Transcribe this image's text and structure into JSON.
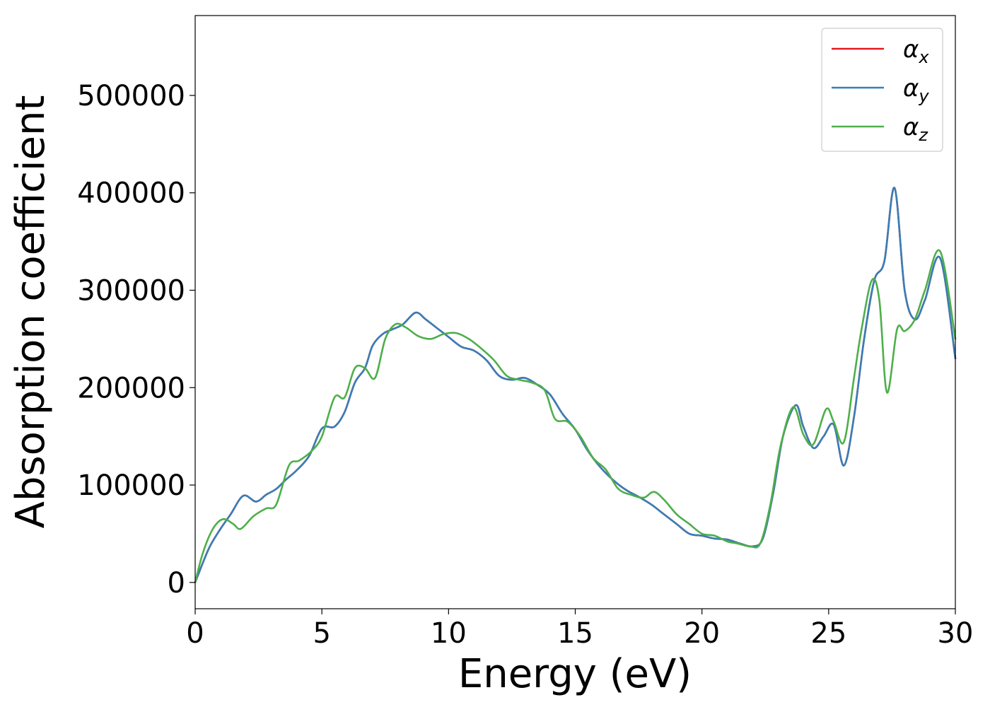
{
  "chart_data": {
    "type": "line",
    "title": "",
    "xlabel": "Energy (eV)",
    "ylabel": "Absorption coefficient",
    "xlim": [
      0,
      30
    ],
    "ylim": [
      -27000,
      582000
    ],
    "xticks": [
      0,
      5,
      10,
      15,
      20,
      25,
      30
    ],
    "yticks": [
      0,
      100000,
      200000,
      300000,
      400000,
      500000
    ],
    "grid": false,
    "legend_position": "top-right",
    "series": [
      {
        "name": "α",
        "subscript": "x",
        "color": "#e41a1c",
        "x": [
          0,
          0.3,
          0.6,
          1.0,
          1.4,
          1.9,
          2.4,
          2.8,
          3.2,
          3.6,
          4.0,
          4.5,
          5.0,
          5.5,
          5.9,
          6.3,
          6.7,
          7.0,
          7.4,
          7.8,
          8.2,
          8.7,
          9.1,
          9.5,
          10.0,
          10.5,
          11.0,
          11.5,
          12.0,
          12.5,
          13.0,
          13.5,
          14.0,
          14.5,
          15.0,
          15.5,
          16.0,
          16.5,
          17.0,
          17.5,
          18.0,
          18.5,
          19.0,
          19.5,
          20.0,
          20.5,
          21.0,
          21.5,
          22.0,
          22.4,
          22.8,
          23.2,
          23.7,
          24.0,
          24.4,
          24.8,
          25.2,
          25.6,
          26.0,
          26.4,
          26.8,
          27.2,
          27.6,
          28.0,
          28.4,
          28.8,
          29.4,
          30.0
        ],
        "y": [
          0,
          20000,
          38000,
          55000,
          70000,
          89000,
          83000,
          90000,
          96000,
          106000,
          115000,
          130000,
          158000,
          160000,
          175000,
          205000,
          220000,
          243000,
          255000,
          260000,
          265000,
          277000,
          270000,
          262000,
          252000,
          242000,
          238000,
          228000,
          212000,
          208000,
          210000,
          203000,
          193000,
          173000,
          157000,
          135000,
          118000,
          105000,
          95000,
          88000,
          80000,
          70000,
          60000,
          50000,
          48000,
          45000,
          44000,
          40000,
          37000,
          45000,
          90000,
          150000,
          182000,
          160000,
          138000,
          150000,
          162000,
          120000,
          170000,
          250000,
          310000,
          330000,
          405000,
          300000,
          270000,
          290000,
          333000,
          230000
        ]
      },
      {
        "name": "α",
        "subscript": "y",
        "color": "#377eb8",
        "x": [
          0,
          0.3,
          0.6,
          1.0,
          1.4,
          1.9,
          2.4,
          2.8,
          3.2,
          3.6,
          4.0,
          4.5,
          5.0,
          5.5,
          5.9,
          6.3,
          6.7,
          7.0,
          7.4,
          7.8,
          8.2,
          8.7,
          9.1,
          9.5,
          10.0,
          10.5,
          11.0,
          11.5,
          12.0,
          12.5,
          13.0,
          13.5,
          14.0,
          14.5,
          15.0,
          15.5,
          16.0,
          16.5,
          17.0,
          17.5,
          18.0,
          18.5,
          19.0,
          19.5,
          20.0,
          20.5,
          21.0,
          21.5,
          22.0,
          22.4,
          22.8,
          23.2,
          23.7,
          24.0,
          24.4,
          24.8,
          25.2,
          25.6,
          26.0,
          26.4,
          26.8,
          27.2,
          27.6,
          28.0,
          28.4,
          28.8,
          29.4,
          30.0
        ],
        "y": [
          0,
          20000,
          38000,
          55000,
          70000,
          89000,
          83000,
          90000,
          96000,
          106000,
          115000,
          130000,
          158000,
          160000,
          175000,
          205000,
          220000,
          243000,
          255000,
          260000,
          265000,
          277000,
          270000,
          262000,
          252000,
          242000,
          238000,
          228000,
          212000,
          208000,
          210000,
          203000,
          193000,
          173000,
          157000,
          135000,
          118000,
          105000,
          95000,
          88000,
          80000,
          70000,
          60000,
          50000,
          48000,
          45000,
          44000,
          40000,
          37000,
          45000,
          90000,
          150000,
          182000,
          160000,
          138000,
          150000,
          162000,
          120000,
          170000,
          250000,
          310000,
          330000,
          405000,
          300000,
          270000,
          290000,
          333000,
          230000
        ]
      },
      {
        "name": "α",
        "subscript": "z",
        "color": "#4daf4a",
        "x": [
          0,
          0.3,
          0.7,
          1.1,
          1.5,
          1.8,
          2.3,
          2.8,
          3.2,
          3.7,
          4.1,
          4.6,
          5.0,
          5.5,
          5.9,
          6.3,
          6.7,
          7.1,
          7.5,
          7.9,
          8.3,
          8.8,
          9.3,
          9.8,
          10.3,
          10.8,
          11.3,
          11.8,
          12.3,
          12.8,
          13.3,
          13.8,
          14.2,
          14.7,
          15.2,
          15.7,
          16.2,
          16.7,
          17.2,
          17.7,
          18.1,
          18.5,
          19.0,
          19.5,
          20.0,
          20.5,
          21.0,
          21.4,
          21.9,
          22.3,
          22.7,
          23.1,
          23.6,
          24.0,
          24.4,
          24.9,
          25.2,
          25.6,
          26.0,
          26.3,
          26.7,
          27.0,
          27.3,
          27.7,
          28.0,
          28.4,
          28.8,
          29.4,
          30.0
        ],
        "y": [
          0,
          30000,
          55000,
          65000,
          60000,
          55000,
          68000,
          76000,
          80000,
          120000,
          125000,
          135000,
          150000,
          190000,
          190000,
          220000,
          220000,
          210000,
          250000,
          265000,
          262000,
          253000,
          250000,
          255000,
          256000,
          250000,
          240000,
          228000,
          212000,
          208000,
          205000,
          197000,
          168000,
          165000,
          150000,
          128000,
          116000,
          96000,
          90000,
          87000,
          93000,
          85000,
          70000,
          60000,
          50000,
          48000,
          42000,
          40000,
          37000,
          40000,
          80000,
          140000,
          180000,
          152000,
          142000,
          178000,
          165000,
          144000,
          210000,
          260000,
          310000,
          290000,
          195000,
          260000,
          258000,
          270000,
          300000,
          340000,
          250000
        ]
      }
    ]
  }
}
